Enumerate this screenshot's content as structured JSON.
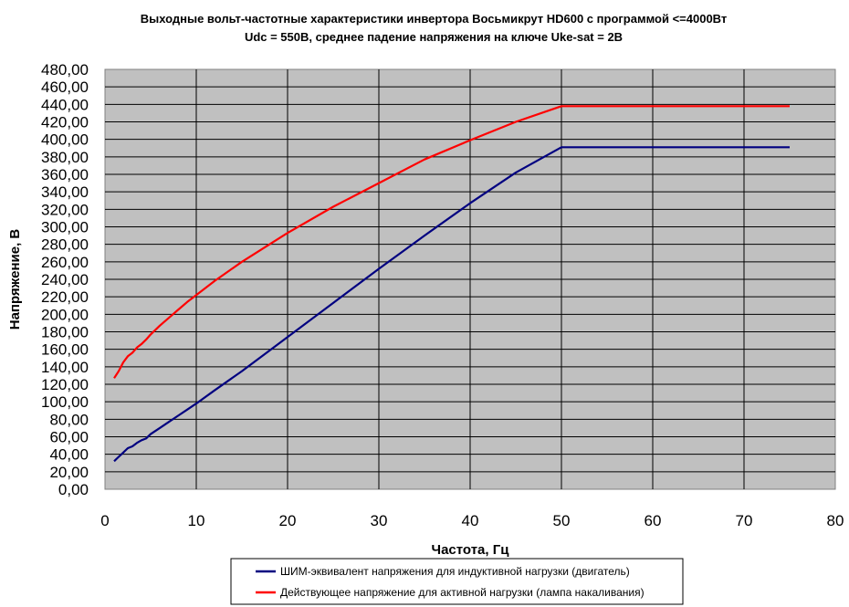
{
  "chart_data": {
    "type": "line",
    "title": "Выходные вольт-частотные характеристики инвертора Восьмикрут HD600 с программой  <=4000Вт",
    "subtitle": "Udc = 550В, среднее падение напряжения на ключе Uke-sat = 2В",
    "xlabel": "Частота, Гц",
    "ylabel": "Напряжение, В",
    "xlim": [
      0,
      80
    ],
    "ylim": [
      0,
      480
    ],
    "xticks": [
      0,
      10,
      20,
      30,
      40,
      50,
      60,
      70,
      80
    ],
    "yticks": [
      "0,00",
      "20,00",
      "40,00",
      "60,00",
      "80,00",
      "100,00",
      "120,00",
      "140,00",
      "160,00",
      "180,00",
      "200,00",
      "220,00",
      "240,00",
      "260,00",
      "280,00",
      "300,00",
      "320,00",
      "340,00",
      "360,00",
      "380,00",
      "400,00",
      "420,00",
      "440,00",
      "460,00",
      "480,00"
    ],
    "grid": true,
    "plot_background": "#c0c0c0",
    "legend_position": "bottom",
    "series": [
      {
        "name": "ШИМ-эквивалент напряжения для индуктивной нагрузки (двигатель)",
        "color": "#000080",
        "x": [
          1,
          1.5,
          2,
          2.5,
          3,
          3.5,
          4,
          4.5,
          5,
          6,
          7,
          8,
          9,
          10,
          12,
          15,
          20,
          25,
          30,
          35,
          40,
          45,
          50,
          55,
          60,
          65,
          70,
          75
        ],
        "y": [
          32,
          37,
          42,
          47,
          49,
          53,
          56,
          58,
          63,
          70,
          77,
          84,
          91,
          98,
          113,
          135,
          174,
          213,
          252,
          290,
          327,
          362,
          391,
          391,
          391,
          391,
          391,
          391
        ]
      },
      {
        "name": "Действующее напряжение для активной нагрузки (лампа накаливания)",
        "color": "#ff0000",
        "x": [
          1,
          1.5,
          2,
          2.5,
          3,
          3.5,
          4,
          4.5,
          5,
          6,
          7,
          8,
          9,
          10,
          12,
          15,
          20,
          25,
          30,
          35,
          40,
          45,
          50,
          55,
          60,
          65,
          70,
          75
        ],
        "y": [
          127,
          135,
          145,
          152,
          156,
          162,
          166,
          171,
          177,
          187,
          196,
          205,
          214,
          222,
          238,
          260,
          293,
          323,
          350,
          377,
          399,
          420,
          438,
          438,
          438,
          438,
          438,
          438
        ]
      }
    ]
  }
}
